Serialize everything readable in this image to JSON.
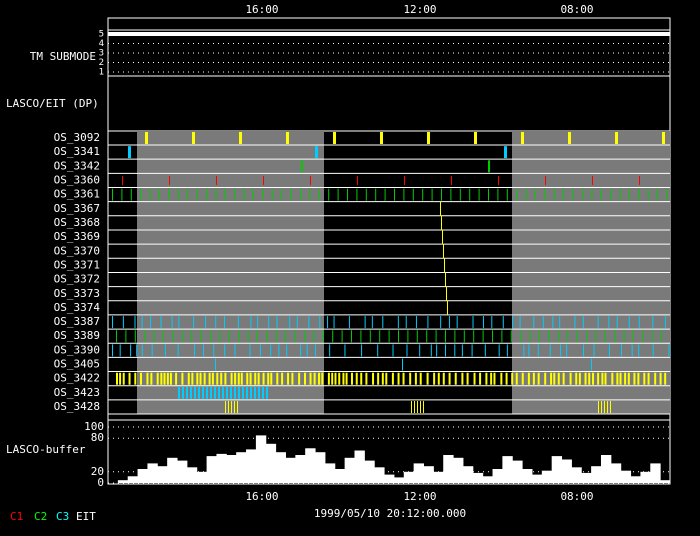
{
  "axis": {
    "top_ticks": [
      "16:00",
      "12:00",
      "08:00"
    ],
    "bottom_ticks": [
      "16:00",
      "12:00",
      "08:00"
    ]
  },
  "tm_submode": {
    "label": "TM SUBMODE",
    "ticks": [
      "5",
      "4",
      "3",
      "2",
      "1"
    ]
  },
  "section": "LASCO/EIT (DP)",
  "rows": [
    "OS_3092",
    "OS_3341",
    "OS_3342",
    "OS_3360",
    "OS_3361",
    "OS_3367",
    "OS_3368",
    "OS_3369",
    "OS_3370",
    "OS_3371",
    "OS_3372",
    "OS_3373",
    "OS_3374",
    "OS_3387",
    "OS_3389",
    "OS_3390",
    "OS_3405",
    "OS_3422",
    "OS_3423",
    "OS_3428"
  ],
  "buffer": {
    "label": "LASCO-buffer",
    "yticks": [
      100,
      80,
      20,
      0
    ],
    "values": [
      0,
      5,
      12,
      25,
      35,
      30,
      45,
      40,
      28,
      20,
      48,
      52,
      50,
      55,
      60,
      85,
      70,
      55,
      45,
      50,
      62,
      55,
      35,
      25,
      45,
      58,
      40,
      28,
      15,
      10,
      20,
      35,
      30,
      20,
      50,
      45,
      30,
      18,
      12,
      25,
      48,
      40,
      25,
      15,
      22,
      48,
      42,
      28,
      18,
      30,
      50,
      35,
      22,
      12,
      20,
      35,
      5
    ]
  },
  "timestamp": "1999/05/10 20:12:00.000",
  "legend": [
    "C1",
    "C2",
    "C3",
    "EIT"
  ]
}
